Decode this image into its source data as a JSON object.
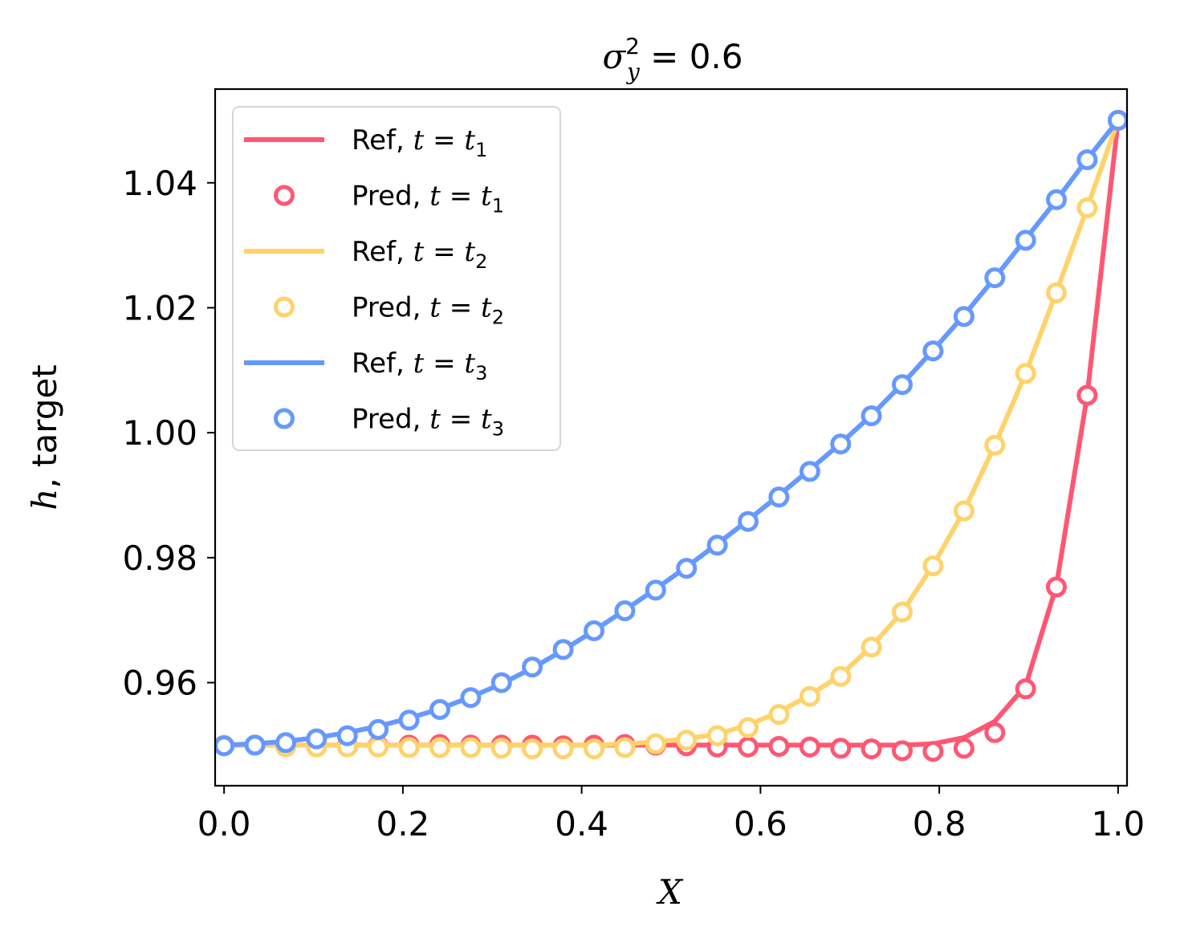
{
  "chart_data": {
    "type": "line",
    "title": {
      "sym": "σ",
      "sup": "2",
      "sub": "y",
      "rest": " = 0.6"
    },
    "xlabel": "X",
    "ylabel": {
      "ital": "h",
      "rest": ", target"
    },
    "xlim": [
      -0.01,
      1.01
    ],
    "ylim": [
      0.9435,
      1.055
    ],
    "xticks": [
      0.0,
      0.2,
      0.4,
      0.6,
      0.8,
      1.0
    ],
    "xtick_labels": [
      "0.0",
      "0.2",
      "0.4",
      "0.6",
      "0.8",
      "1.0"
    ],
    "yticks": [
      0.96,
      0.98,
      1.0,
      1.02,
      1.04
    ],
    "ytick_labels": [
      "0.96",
      "0.98",
      "1.00",
      "1.02",
      "1.04"
    ],
    "grid": false,
    "legend_position": "upper-left",
    "x": [
      0.0,
      0.0345,
      0.069,
      0.1034,
      0.1379,
      0.1724,
      0.2069,
      0.2414,
      0.2759,
      0.3103,
      0.3448,
      0.3793,
      0.4138,
      0.4483,
      0.4828,
      0.5172,
      0.5517,
      0.5862,
      0.6207,
      0.6552,
      0.6897,
      0.7241,
      0.7586,
      0.7931,
      0.8276,
      0.8621,
      0.8966,
      0.931,
      0.9655,
      1.0
    ],
    "series": [
      {
        "name_prefix": "Ref, ",
        "name_t": "t",
        "name_sub": "1",
        "kind": "line",
        "color": "#FF5773",
        "values": [
          0.95,
          0.95,
          0.95,
          0.95,
          0.95,
          0.95,
          0.95,
          0.95,
          0.95,
          0.95,
          0.95,
          0.95,
          0.95,
          0.95,
          0.95,
          0.95,
          0.95,
          0.95,
          0.95,
          0.95,
          0.95,
          0.95,
          0.95,
          0.9502,
          0.9512,
          0.9538,
          0.9595,
          0.9755,
          1.006,
          1.05
        ]
      },
      {
        "name_prefix": "Pred, ",
        "name_t": "t",
        "name_sub": "1",
        "kind": "markers",
        "color": "#FF5773",
        "values": [
          0.9499,
          0.95,
          0.9501,
          0.95,
          0.9499,
          0.9499,
          0.95,
          0.9501,
          0.95,
          0.95,
          0.95,
          0.9499,
          0.95,
          0.9501,
          0.95,
          0.9499,
          0.9497,
          0.9497,
          0.9498,
          0.9497,
          0.9495,
          0.9494,
          0.9491,
          0.949,
          0.9495,
          0.952,
          0.959,
          0.9753,
          1.006,
          1.05
        ]
      },
      {
        "name_prefix": "Ref, ",
        "name_t": "t",
        "name_sub": "2",
        "kind": "line",
        "color": "#FFD36B",
        "values": [
          0.95,
          0.95,
          0.95,
          0.95,
          0.95,
          0.95,
          0.95,
          0.95,
          0.95,
          0.95,
          0.95,
          0.95,
          0.95,
          0.9502,
          0.9505,
          0.951,
          0.9518,
          0.9532,
          0.9553,
          0.958,
          0.9612,
          0.9658,
          0.9713,
          0.9788,
          0.9875,
          0.998,
          1.0095,
          1.0225,
          1.036,
          1.05
        ]
      },
      {
        "name_prefix": "Pred, ",
        "name_t": "t",
        "name_sub": "2",
        "kind": "markers",
        "color": "#FFD36B",
        "values": [
          0.95,
          0.95,
          0.9497,
          0.9497,
          0.9497,
          0.9497,
          0.9496,
          0.9496,
          0.9496,
          0.9495,
          0.9494,
          0.9494,
          0.9494,
          0.9496,
          0.9502,
          0.9508,
          0.9515,
          0.9528,
          0.9549,
          0.9578,
          0.961,
          0.9657,
          0.9713,
          0.9787,
          0.9875,
          0.998,
          1.0095,
          1.0224,
          1.036,
          1.05
        ]
      },
      {
        "name_prefix": "Ref, ",
        "name_t": "t",
        "name_sub": "3",
        "kind": "line",
        "color": "#6699FF",
        "values": [
          0.95,
          0.9502,
          0.9506,
          0.9512,
          0.952,
          0.953,
          0.9543,
          0.9558,
          0.9577,
          0.9598,
          0.9623,
          0.9652,
          0.9683,
          0.9716,
          0.975,
          0.9785,
          0.9822,
          0.986,
          0.99,
          0.9941,
          0.9983,
          1.0028,
          1.0078,
          1.0132,
          1.0188,
          1.0248,
          1.031,
          1.0372,
          1.0438,
          1.05
        ]
      },
      {
        "name_prefix": "Pred, ",
        "name_t": "t",
        "name_sub": "3",
        "kind": "markers",
        "color": "#6699FF",
        "values": [
          0.9499,
          0.95,
          0.9504,
          0.951,
          0.9515,
          0.9525,
          0.954,
          0.9557,
          0.9576,
          0.96,
          0.9625,
          0.9653,
          0.9683,
          0.9715,
          0.9748,
          0.9783,
          0.982,
          0.9858,
          0.9897,
          0.9938,
          0.9982,
          1.0027,
          1.0077,
          1.0131,
          1.0186,
          1.0248,
          1.0308,
          1.0373,
          1.0437,
          1.05
        ]
      }
    ]
  }
}
